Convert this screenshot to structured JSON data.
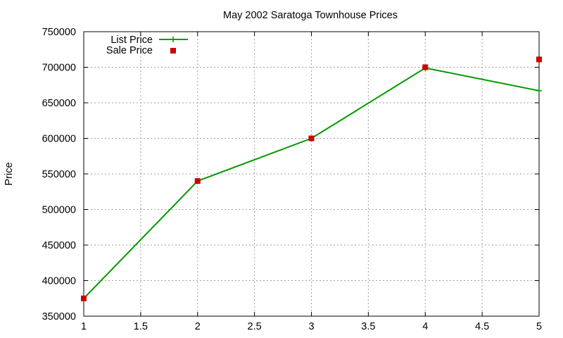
{
  "chart_data": {
    "type": "line",
    "title": "May 2002 Saratoga Townhouse Prices",
    "xlabel": "",
    "ylabel": "Price",
    "xlim": [
      1,
      5
    ],
    "ylim": [
      350000,
      750000
    ],
    "x_ticks": [
      "1",
      "1.5",
      "2",
      "2.5",
      "3",
      "3.5",
      "4",
      "4.5",
      "5"
    ],
    "y_ticks": [
      "350000",
      "400000",
      "450000",
      "500000",
      "550000",
      "600000",
      "650000",
      "700000",
      "750000"
    ],
    "grid": true,
    "legend_position": "top-left",
    "series": [
      {
        "name": "List Price",
        "style": "linespoints",
        "color": "#009900",
        "x": [
          1,
          2,
          3,
          4,
          5
        ],
        "values": [
          375000,
          540000,
          600000,
          699000,
          667000
        ]
      },
      {
        "name": "Sale Price",
        "style": "points",
        "color": "#cc0000",
        "x": [
          1,
          2,
          3,
          4,
          5
        ],
        "values": [
          375000,
          540000,
          600000,
          700000,
          711000
        ]
      }
    ]
  }
}
